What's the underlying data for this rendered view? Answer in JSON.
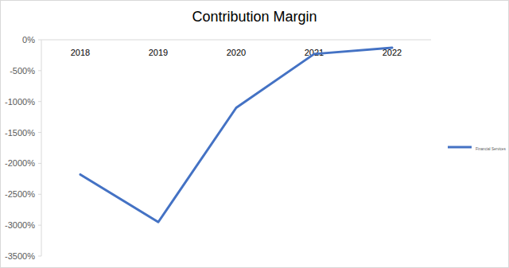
{
  "chart_data": {
    "type": "line",
    "title": "Contribution Margin",
    "categories": [
      "2018",
      "2019",
      "2020",
      "2021",
      "2022"
    ],
    "series": [
      {
        "name": "Financial Services",
        "color": "#4472c4",
        "values": [
          -2180,
          -2950,
          -1100,
          -230,
          -130
        ]
      }
    ],
    "ylim": [
      -3500,
      0
    ],
    "yticks": [
      {
        "value": 0,
        "label": "0%"
      },
      {
        "value": -500,
        "label": "-500%"
      },
      {
        "value": -1000,
        "label": "-1000%"
      },
      {
        "value": -1500,
        "label": "-1500%"
      },
      {
        "value": -2000,
        "label": "-2000%"
      },
      {
        "value": -2500,
        "label": "-2500%"
      },
      {
        "value": -3000,
        "label": "-3000%"
      },
      {
        "value": -3500,
        "label": "-3500%"
      }
    ],
    "grid": false,
    "legend": "right"
  }
}
